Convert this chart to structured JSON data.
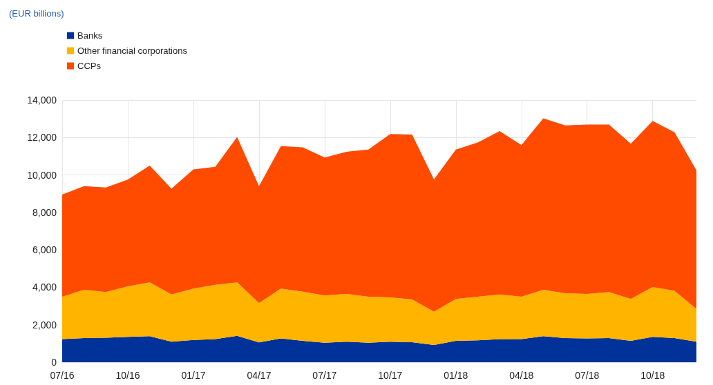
{
  "chart_data": {
    "type": "area",
    "stacked": true,
    "annotations": [
      "(EUR billions)"
    ],
    "categories": [
      "07/16",
      null,
      null,
      "10/16",
      null,
      null,
      "01/17",
      null,
      null,
      "04/17",
      null,
      null,
      "07/17",
      null,
      null,
      "10/17",
      null,
      null,
      "01/18",
      null,
      null,
      "04/18",
      null,
      null,
      "07/18",
      null,
      null,
      "10/18",
      null,
      null
    ],
    "series": [
      {
        "name": "Banks",
        "color": "#003299",
        "values": [
          1230,
          1290,
          1310,
          1350,
          1390,
          1100,
          1190,
          1230,
          1410,
          1060,
          1270,
          1140,
          1040,
          1100,
          1040,
          1100,
          1070,
          920,
          1140,
          1170,
          1230,
          1230,
          1390,
          1290,
          1270,
          1290,
          1140,
          1350,
          1290,
          1100
        ]
      },
      {
        "name": "Other financial corporations",
        "color": "#ffb400",
        "values": [
          2270,
          2580,
          2440,
          2700,
          2870,
          2520,
          2740,
          2910,
          2850,
          2100,
          2660,
          2630,
          2520,
          2550,
          2460,
          2360,
          2280,
          1780,
          2240,
          2330,
          2390,
          2270,
          2480,
          2390,
          2380,
          2460,
          2240,
          2670,
          2520,
          1750
        ]
      },
      {
        "name": "CCPs",
        "color": "#ff4b00",
        "values": [
          5450,
          5530,
          5580,
          5700,
          6240,
          5650,
          6370,
          6300,
          7770,
          6240,
          7610,
          7710,
          7370,
          7590,
          7860,
          8730,
          8810,
          7060,
          7980,
          8230,
          8720,
          8100,
          9150,
          8970,
          9040,
          8940,
          8290,
          8870,
          8470,
          7400
        ]
      }
    ],
    "ylim": [
      0,
      14000
    ],
    "yticks": [
      0,
      {
        "value": 2000,
        "label": "2,000"
      },
      {
        "value": 4000,
        "label": "4,000"
      },
      {
        "value": 6000,
        "label": "6,000"
      },
      {
        "value": 8000,
        "label": "8,000"
      },
      {
        "value": 10000,
        "label": "10,000"
      },
      {
        "value": 12000,
        "label": "12,000"
      },
      {
        "value": 14000,
        "label": "14,000"
      }
    ],
    "grid": true,
    "legend": "top left",
    "marker": "none"
  }
}
